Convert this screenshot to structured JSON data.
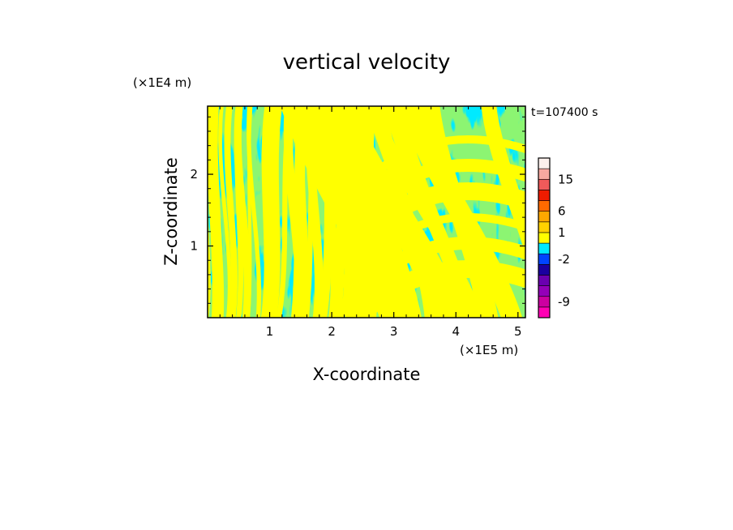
{
  "chart_data": {
    "type": "heatmap",
    "title": "vertical velocity",
    "xlabel": "X-coordinate",
    "ylabel": "Z-coordinate",
    "x_unit": "(×1E5 m)",
    "y_unit": "(×1E4 m)",
    "time_label": "t=107400 s",
    "xlim": [
      0,
      5.12
    ],
    "ylim": [
      0,
      2.95
    ],
    "x_ticks": [
      "1",
      "2",
      "3",
      "4",
      "5"
    ],
    "y_ticks": [
      "1",
      "2"
    ],
    "field_colors": {
      "positive": "#ffff00",
      "negative": "#00eaff"
    },
    "colorbar": {
      "levels": [
        {
          "color": "#ff00b4"
        },
        {
          "color": "#cc00a0"
        },
        {
          "color": "#9400b8"
        },
        {
          "color": "#6a00b0"
        },
        {
          "color": "#1a00a0"
        },
        {
          "color": "#0044ff"
        },
        {
          "color": "#00eaff"
        },
        {
          "color": "#ffff00"
        },
        {
          "color": "#ffd200"
        },
        {
          "color": "#ffa800"
        },
        {
          "color": "#ff6a00"
        },
        {
          "color": "#ee1c00"
        },
        {
          "color": "#f05a5a"
        },
        {
          "color": "#f8a8a0"
        },
        {
          "color": "#fdf0ec"
        }
      ],
      "tick_labels": [
        {
          "label": "-9",
          "pos": 1.5
        },
        {
          "label": "-2",
          "pos": 5.5
        },
        {
          "label": "1",
          "pos": 8.0
        },
        {
          "label": "6",
          "pos": 10.0
        },
        {
          "label": "15",
          "pos": 13.0
        }
      ]
    }
  }
}
